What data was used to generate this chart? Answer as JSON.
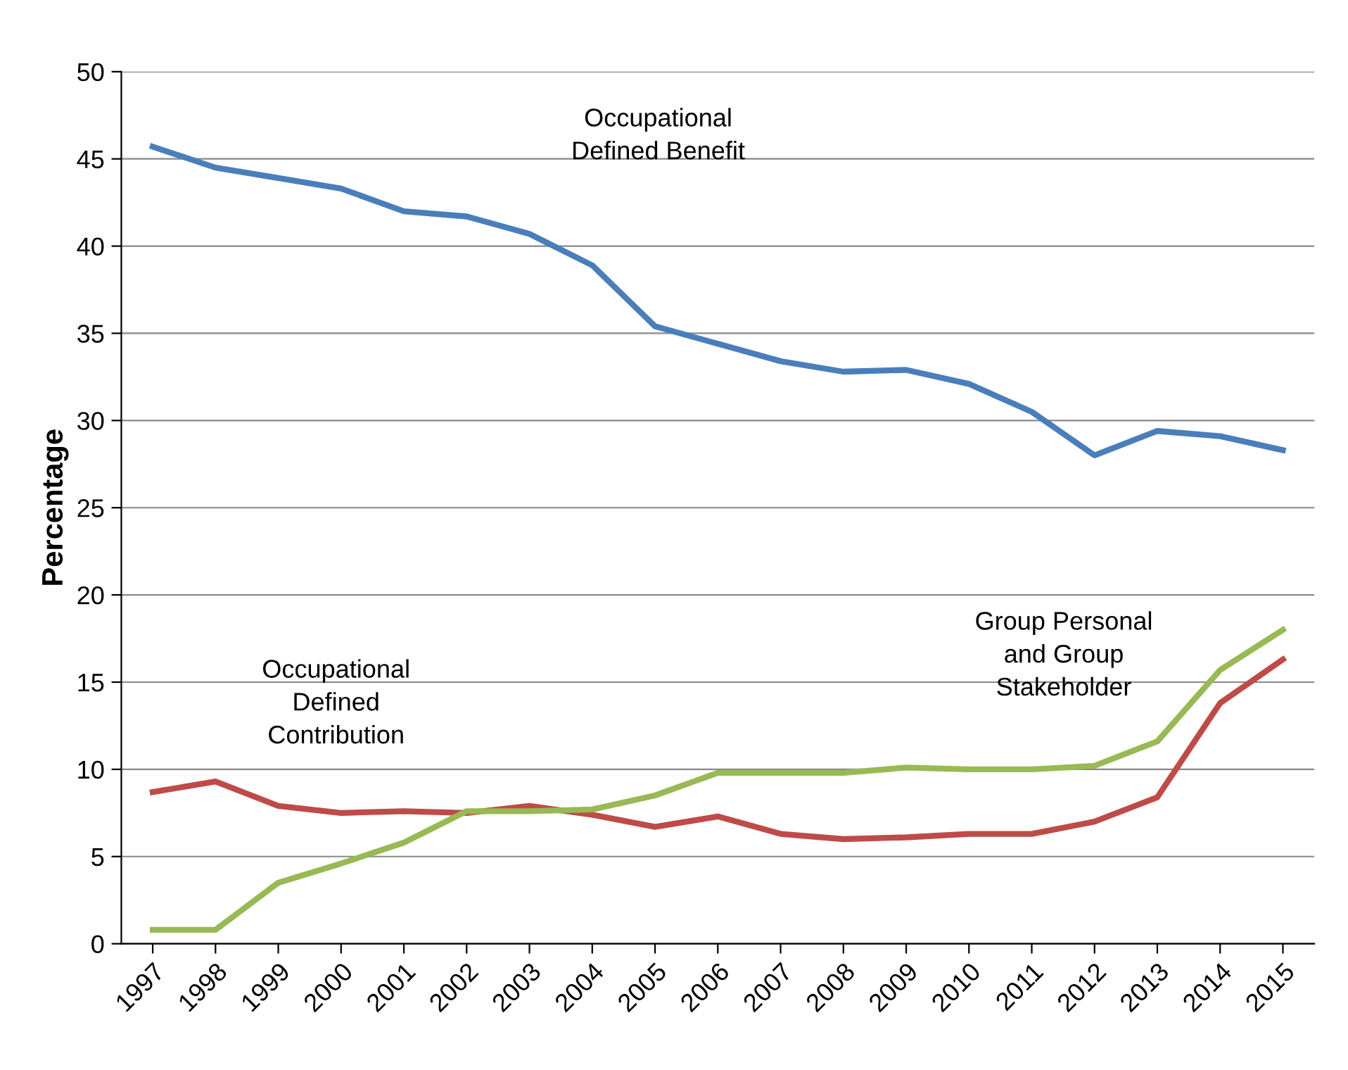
{
  "chart_data": {
    "type": "line",
    "ylabel": "Percentage",
    "categories": [
      "1997",
      "1998",
      "1999",
      "2000",
      "2001",
      "2002",
      "2003",
      "2004",
      "2005",
      "2006",
      "2007",
      "2008",
      "2009",
      "2010",
      "2011",
      "2012",
      "2013",
      "2014",
      "2015"
    ],
    "series": [
      {
        "color": "#4a7ebb",
        "values": [
          45.7,
          44.5,
          43.9,
          43.3,
          42.0,
          41.7,
          40.7,
          38.9,
          35.4,
          34.4,
          33.4,
          32.8,
          32.9,
          32.1,
          30.5,
          28.0,
          29.4,
          29.1,
          28.3
        ]
      },
      {
        "color": "#be4b48",
        "values": [
          8.7,
          9.3,
          7.9,
          7.5,
          7.6,
          7.5,
          7.9,
          7.4,
          6.7,
          7.3,
          6.3,
          6.0,
          6.1,
          6.3,
          6.3,
          7.0,
          8.4,
          13.8,
          16.3
        ]
      },
      {
        "color": "#98b954",
        "values": [
          0.8,
          0.8,
          3.5,
          4.6,
          5.8,
          7.6,
          7.6,
          7.7,
          8.5,
          9.8,
          9.8,
          9.8,
          10.1,
          10.0,
          10.0,
          10.2,
          11.6,
          15.7,
          18.0
        ]
      }
    ],
    "annotations": [
      "Occupational\nDefined Benefit",
      "Occupational\nDefined\nContribution",
      "Group Personal\nand Group\nStakeholder"
    ],
    "ylim": [
      0,
      50
    ],
    "yticks": [
      0,
      5,
      10,
      15,
      20,
      25,
      30,
      35,
      40,
      45,
      50
    ],
    "grid": "y",
    "marker": "none",
    "line_style": "solid",
    "legend": false
  }
}
